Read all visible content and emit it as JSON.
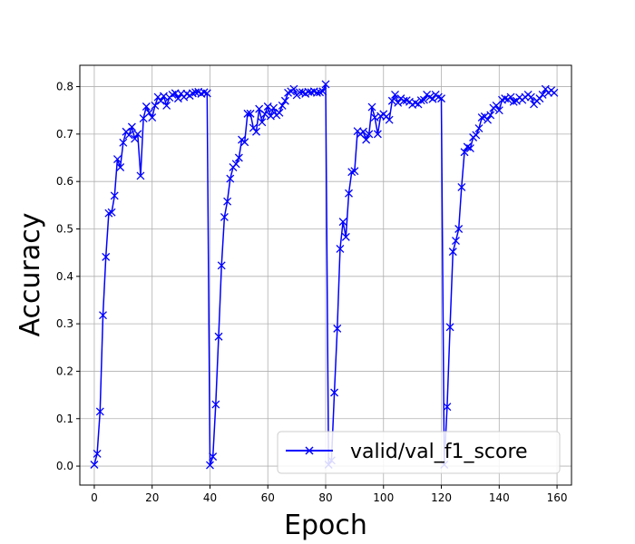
{
  "chart_data": {
    "type": "line",
    "xlabel": "Epoch",
    "ylabel": "Accuracy",
    "xlim": [
      -5,
      165
    ],
    "ylim": [
      -0.04,
      0.845
    ],
    "x_ticks": [
      0,
      20,
      40,
      60,
      80,
      100,
      120,
      140,
      160
    ],
    "y_ticks": [
      0.0,
      0.1,
      0.2,
      0.3,
      0.4,
      0.5,
      0.6,
      0.7,
      0.8
    ],
    "grid": true,
    "legend_position": "lower-right",
    "series": [
      {
        "name": "valid/val_f1_score",
        "color": "#0000ff",
        "marker": "x",
        "x": [
          0,
          1,
          2,
          3,
          4,
          5,
          6,
          7,
          8,
          9,
          10,
          11,
          12,
          13,
          14,
          15,
          16,
          17,
          18,
          19,
          20,
          21,
          22,
          23,
          24,
          25,
          26,
          27,
          28,
          29,
          30,
          31,
          32,
          33,
          34,
          35,
          36,
          37,
          38,
          39,
          40,
          41,
          42,
          43,
          44,
          45,
          46,
          47,
          48,
          49,
          50,
          51,
          52,
          53,
          54,
          55,
          56,
          57,
          58,
          59,
          60,
          61,
          62,
          63,
          64,
          65,
          66,
          67,
          68,
          69,
          70,
          71,
          72,
          73,
          74,
          75,
          76,
          77,
          78,
          79,
          80,
          81,
          82,
          83,
          84,
          85,
          86,
          87,
          88,
          89,
          90,
          91,
          92,
          93,
          94,
          95,
          96,
          97,
          98,
          99,
          100,
          101,
          102,
          103,
          104,
          105,
          106,
          107,
          108,
          109,
          110,
          111,
          112,
          113,
          114,
          115,
          116,
          117,
          118,
          119,
          120,
          121,
          122,
          123,
          124,
          125,
          126,
          127,
          128,
          129,
          130,
          131,
          132,
          133,
          134,
          135,
          136,
          137,
          138,
          139,
          140,
          141,
          142,
          143,
          144,
          145,
          146,
          147,
          148,
          149,
          150,
          151,
          152,
          153,
          154,
          155,
          156,
          157,
          158,
          159
        ],
        "y": [
          0.003,
          0.026,
          0.115,
          0.318,
          0.441,
          0.533,
          0.535,
          0.57,
          0.647,
          0.63,
          0.682,
          0.705,
          0.698,
          0.715,
          0.69,
          0.7,
          0.612,
          0.733,
          0.758,
          0.745,
          0.735,
          0.76,
          0.778,
          0.77,
          0.78,
          0.76,
          0.777,
          0.783,
          0.786,
          0.775,
          0.785,
          0.778,
          0.785,
          0.781,
          0.786,
          0.788,
          0.789,
          0.785,
          0.788,
          0.786,
          0.002,
          0.02,
          0.13,
          0.273,
          0.423,
          0.525,
          0.558,
          0.606,
          0.63,
          0.637,
          0.65,
          0.688,
          0.683,
          0.743,
          0.743,
          0.713,
          0.705,
          0.753,
          0.725,
          0.742,
          0.758,
          0.738,
          0.755,
          0.74,
          0.745,
          0.76,
          0.77,
          0.787,
          0.79,
          0.795,
          0.782,
          0.788,
          0.788,
          0.785,
          0.789,
          0.788,
          0.79,
          0.787,
          0.788,
          0.79,
          0.805,
          0.003,
          0.012,
          0.155,
          0.29,
          0.458,
          0.515,
          0.483,
          0.575,
          0.62,
          0.622,
          0.706,
          0.7,
          0.705,
          0.688,
          0.7,
          0.757,
          0.735,
          0.7,
          0.738,
          0.742,
          0.737,
          0.73,
          0.77,
          0.783,
          0.766,
          0.775,
          0.77,
          0.771,
          0.768,
          0.762,
          0.766,
          0.763,
          0.771,
          0.772,
          0.783,
          0.778,
          0.774,
          0.783,
          0.778,
          0.775,
          0.003,
          0.125,
          0.293,
          0.452,
          0.475,
          0.5,
          0.588,
          0.662,
          0.673,
          0.67,
          0.693,
          0.698,
          0.712,
          0.735,
          0.737,
          0.73,
          0.74,
          0.755,
          0.76,
          0.75,
          0.772,
          0.775,
          0.773,
          0.778,
          0.768,
          0.77,
          0.777,
          0.772,
          0.778,
          0.783,
          0.778,
          0.763,
          0.77,
          0.775,
          0.783,
          0.795,
          0.787,
          0.792,
          0.787
        ]
      }
    ]
  }
}
